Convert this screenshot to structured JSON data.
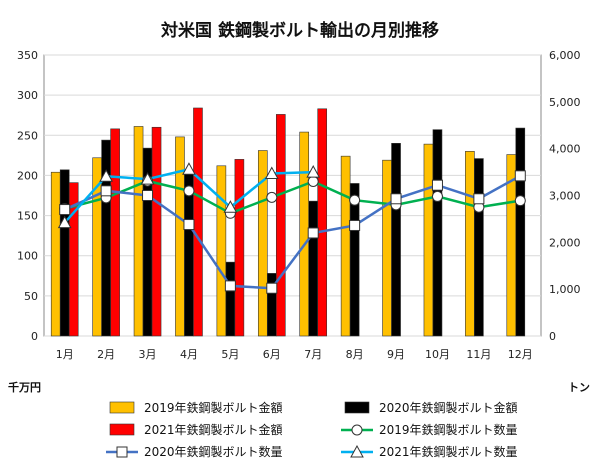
{
  "chart_data": {
    "type": "bar",
    "title": "対米国 鉄鋼製ボルト輸出の月別推移",
    "left_unit": "千万円",
    "right_unit": "トン",
    "categories": [
      "1月",
      "2月",
      "3月",
      "4月",
      "5月",
      "6月",
      "7月",
      "8月",
      "9月",
      "10月",
      "11月",
      "12月"
    ],
    "left_axis": {
      "min": 0,
      "max": 350,
      "ticks": [
        "0",
        "50",
        "100",
        "150",
        "200",
        "250",
        "300",
        "350"
      ]
    },
    "right_axis": {
      "min": 0,
      "max": 6000,
      "ticks": [
        "0",
        "1,000",
        "2,000",
        "3,000",
        "4,000",
        "5,000",
        "6,000"
      ]
    },
    "grid": true,
    "legend_position": "bottom",
    "bar_series": [
      {
        "name": "2019年鉄鋼製ボルト金額",
        "color": "#FFC000",
        "values": [
          204,
          222,
          261,
          248,
          212,
          231,
          254,
          224,
          219,
          239,
          230,
          226
        ]
      },
      {
        "name": "2020年鉄鋼製ボルト金額",
        "color": "#000000",
        "values": [
          207,
          244,
          234,
          202,
          92,
          78,
          168,
          190,
          240,
          257,
          221,
          259
        ]
      },
      {
        "name": "2021年鉄鋼製ボルト金額",
        "color": "#FF0000",
        "values": [
          191,
          258,
          260,
          284,
          220,
          276,
          283,
          null,
          null,
          null,
          null,
          null
        ]
      }
    ],
    "line_series": [
      {
        "name": "2019年鉄鋼製ボルト数量",
        "color": "#00B050",
        "marker": "circle",
        "values": [
          2720,
          2950,
          3310,
          3100,
          2620,
          2960,
          3300,
          2900,
          2800,
          2980,
          2750,
          2890
        ]
      },
      {
        "name": "2020年鉄鋼製ボルト数量",
        "color": "#4472C4",
        "marker": "square",
        "values": [
          2700,
          3100,
          3000,
          2380,
          1070,
          1020,
          2200,
          2360,
          2930,
          3220,
          2930,
          3420
        ]
      },
      {
        "name": "2021年鉄鋼製ボルト数量",
        "color": "#00B0F0",
        "marker": "triangle",
        "values": [
          2420,
          3410,
          3350,
          3560,
          2750,
          3470,
          3500,
          null,
          null,
          null,
          null,
          null
        ]
      }
    ]
  }
}
